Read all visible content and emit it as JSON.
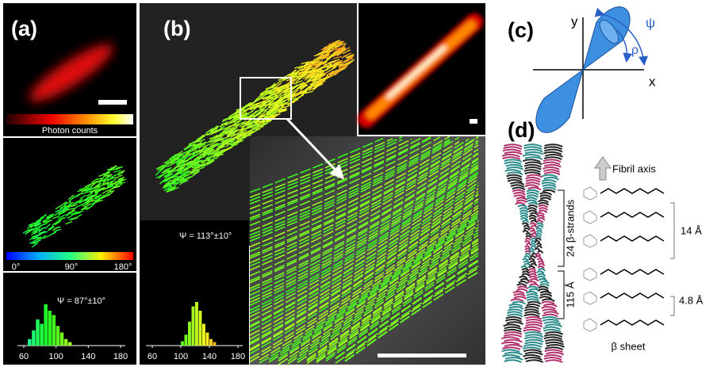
{
  "panel_a": {
    "label": "(a)",
    "colorbar_label": "Photon counts",
    "angle_ticks": [
      "0°",
      "90°",
      "180°"
    ],
    "histogram": {
      "annotation": "Ψ = 87°±10°",
      "xticks": [
        60,
        100,
        140,
        180
      ],
      "bins": [
        65,
        70,
        75,
        80,
        85,
        90,
        95,
        100,
        105,
        110,
        115,
        120
      ],
      "counts": [
        15,
        35,
        60,
        50,
        95,
        80,
        70,
        45,
        30,
        15,
        8
      ]
    }
  },
  "panel_b": {
    "label": "(b)",
    "histogram": {
      "annotation": "Ψ = 113°±10°",
      "xticks": [
        60,
        100,
        140,
        180
      ],
      "bins": [
        100,
        105,
        110,
        115,
        120,
        125,
        130,
        135,
        140,
        145,
        150
      ],
      "counts": [
        10,
        25,
        55,
        90,
        100,
        80,
        50,
        30,
        15,
        8
      ]
    }
  },
  "panel_c": {
    "label": "(c)",
    "y_axis": "y",
    "x_axis": "x",
    "psi": "ψ",
    "rho": "ρ"
  },
  "panel_d": {
    "label": "(d)",
    "fibril_axis": "Fibril axis",
    "strands": "24 β-strands",
    "length": "115 Å",
    "spacing_large": "14 Å",
    "spacing_small": "4.8 Å",
    "sheet": "β sheet"
  }
}
